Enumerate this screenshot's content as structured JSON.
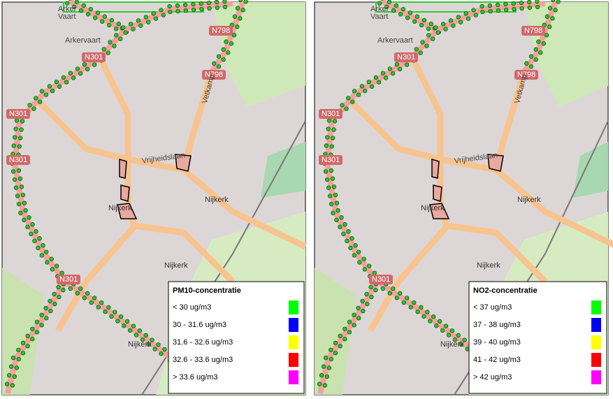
{
  "panels": [
    {
      "map_labels": [
        "Arker",
        "Vaart",
        "Arkervaart",
        "N301",
        "N301",
        "N301",
        "N301",
        "N798",
        "N798",
        "Vetkamp",
        "Vrijheidslaan",
        "Nijkerk",
        "Nijkerk",
        "Nijkerk",
        "Nijkerk"
      ],
      "legend": {
        "title": "PM10-concentratie",
        "entries": [
          {
            "label": "< 30 ug/m3",
            "color": "#00ff00"
          },
          {
            "label": "30 - 31.6 ug/m3",
            "color": "#0000ff"
          },
          {
            "label": "31.6 - 32.6 ug/m3",
            "color": "#ffff00"
          },
          {
            "label": "32.6 - 33.6 ug/m3",
            "color": "#ff0000"
          },
          {
            "label": "> 33.6 ug/m3",
            "color": "#ff00ff"
          }
        ]
      }
    },
    {
      "map_labels": [
        "Arker",
        "Vaart",
        "Arkervaart",
        "N301",
        "N301",
        "N301",
        "N301",
        "N798",
        "N798",
        "Vetkamp",
        "Vrijheidslaan",
        "Nijkerk",
        "Nijkerk",
        "Nijkerk",
        "Nijkerk"
      ],
      "legend": {
        "title": "NO2-concentratie",
        "entries": [
          {
            "label": "< 37 ug/m3",
            "color": "#00ff00"
          },
          {
            "label": "37 - 38 ug/m3",
            "color": "#0000ff"
          },
          {
            "label": "39 - 40 ug/m3",
            "color": "#ffff00"
          },
          {
            "label": "41 - 42 ug/m3",
            "color": "#ff0000"
          },
          {
            "label": "> 42 ug/m3",
            "color": "#ff00ff"
          }
        ]
      }
    }
  ]
}
